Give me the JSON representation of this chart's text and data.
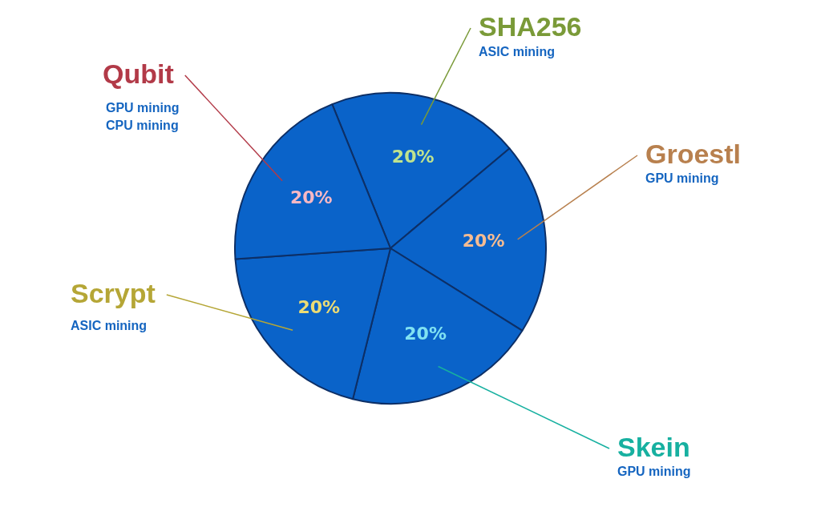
{
  "chart_data": {
    "type": "pie",
    "categories": [
      "SHA256",
      "Groestl",
      "Skein",
      "Scrypt",
      "Qubit"
    ],
    "values": [
      20,
      20,
      20,
      20,
      20
    ],
    "color": "#0a63c9",
    "value_labels": [
      "20%",
      "20%",
      "20%",
      "20%",
      "20%"
    ],
    "annotations": [
      "ASIC mining",
      "GPU mining",
      "GPU mining",
      "ASIC mining",
      "GPU mining\nCPU mining"
    ]
  }
}
